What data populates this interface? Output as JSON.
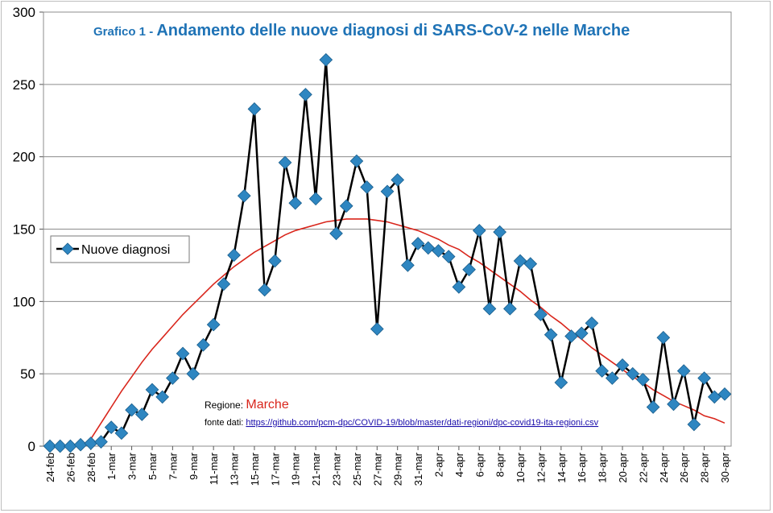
{
  "chart_data": {
    "type": "line",
    "title_prefix": "Grafico 1 - ",
    "title": "Andamento delle nuove diagnosi di SARS-CoV-2 nelle Marche",
    "ylim": [
      0,
      300
    ],
    "yticks": [
      0,
      50,
      100,
      150,
      200,
      250,
      300
    ],
    "grid": true,
    "legend_position": "left",
    "x_tick_labels": [
      "24-feb",
      "26-feb",
      "28-feb",
      "1-mar",
      "3-mar",
      "5-mar",
      "7-mar",
      "9-mar",
      "11-mar",
      "13-mar",
      "15-mar",
      "17-mar",
      "19-mar",
      "21-mar",
      "23-mar",
      "25-mar",
      "27-mar",
      "29-mar",
      "31-mar",
      "2-apr",
      "4-apr",
      "6-apr",
      "8-apr",
      "10-apr",
      "12-apr",
      "14-apr",
      "16-apr",
      "18-apr",
      "20-apr",
      "22-apr",
      "24-apr",
      "26-apr",
      "28-apr",
      "30-apr"
    ],
    "series": [
      {
        "name": "Nuove diagnosi",
        "color": "#000000",
        "marker_color": "#2e86c1",
        "values": [
          0,
          0,
          0,
          1,
          2,
          3,
          13,
          9,
          25,
          22,
          39,
          34,
          47,
          64,
          50,
          70,
          84,
          112,
          132,
          173,
          233,
          108,
          128,
          196,
          168,
          243,
          171,
          267,
          147,
          166,
          197,
          179,
          81,
          176,
          184,
          125,
          140,
          137,
          135,
          131,
          110,
          122,
          149,
          95,
          148,
          95,
          128,
          126,
          91,
          77,
          44,
          76,
          78,
          85,
          52,
          47,
          56,
          50,
          46,
          27,
          75,
          29,
          52,
          15,
          47,
          34,
          36
        ]
      }
    ],
    "trendline": {
      "color": "#d9261c",
      "values": [
        0,
        0,
        0,
        0,
        5,
        16,
        27,
        38,
        48,
        58,
        67,
        75,
        83,
        91,
        98,
        105,
        112,
        118,
        124,
        129,
        134,
        138,
        142,
        146,
        149,
        151,
        153,
        155,
        156,
        157,
        157,
        157,
        156,
        155,
        153,
        151,
        149,
        146,
        143,
        139,
        136,
        131,
        127,
        122,
        117,
        112,
        107,
        101,
        96,
        90,
        85,
        79,
        74,
        68,
        63,
        58,
        53,
        48,
        44,
        39,
        35,
        31,
        28,
        25,
        21,
        19,
        16
      ]
    },
    "annotation": {
      "region_label": "Regione: ",
      "region_value": "Marche",
      "source_label": "fonte dati: ",
      "source_link": "https://github.com/pcm-dpc/COVID-19/blob/master/dati-regioni/dpc-covid19-ita-regioni.csv"
    }
  }
}
